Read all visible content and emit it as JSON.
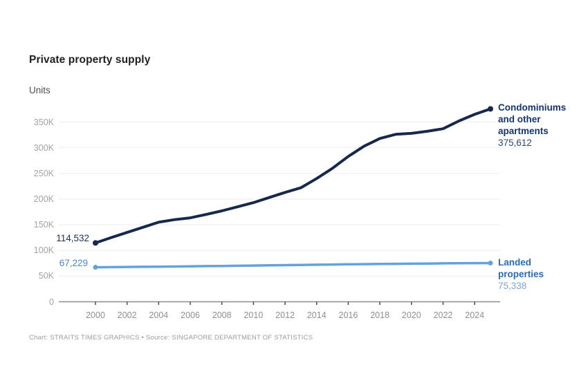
{
  "header": {
    "title": "Private property supply",
    "units_label": "Units"
  },
  "footer": {
    "credit": "Chart: STRAITS TIMES GRAPHICS • Source: SINGAPORE DEPARTMENT OF STATISTICS"
  },
  "colors": {
    "condo_line": "#16294c",
    "landed_line": "#63a2dc",
    "condo_label": "#15356b",
    "condo_value": "#2d4a77",
    "landed_label": "#2a6ab5",
    "landed_value": "#7ea6d8",
    "grid": "#ededed",
    "axis": "#8c8c8c",
    "tick": "#4a4a4a"
  },
  "annotations": {
    "condo_lines": [
      "Condominiums",
      "and other",
      "apartments"
    ],
    "condo_end_value": "375,612",
    "condo_start_value": "114,532",
    "landed_lines": [
      "Landed",
      "properties"
    ],
    "landed_end_value": "75,338",
    "landed_start_value": "67,229"
  },
  "chart_data": {
    "type": "line",
    "title": "Private property supply",
    "ylabel": "Units",
    "grid": "horizontal",
    "legend_position": "right-inline",
    "x": [
      2000,
      2001,
      2002,
      2003,
      2004,
      2005,
      2006,
      2007,
      2008,
      2009,
      2010,
      2011,
      2012,
      2013,
      2014,
      2015,
      2016,
      2017,
      2018,
      2019,
      2020,
      2021,
      2022,
      2023,
      2024,
      2025
    ],
    "series": [
      {
        "name": "Condominiums and other apartments",
        "color": "#16294c",
        "values": [
          114532,
          125000,
          135000,
          145000,
          155000,
          160000,
          163500,
          170000,
          177000,
          185000,
          193000,
          203000,
          213000,
          222000,
          240000,
          260000,
          283000,
          303000,
          318000,
          326000,
          328000,
          332000,
          337000,
          352000,
          365000,
          375612
        ]
      },
      {
        "name": "Landed properties",
        "color": "#63a2dc",
        "values": [
          67229,
          67500,
          67800,
          68100,
          68400,
          68700,
          69000,
          69400,
          69800,
          70200,
          70600,
          71000,
          71400,
          71800,
          72200,
          72600,
          73000,
          73300,
          73600,
          73900,
          74200,
          74500,
          74800,
          75000,
          75200,
          75338
        ]
      }
    ],
    "xticks": [
      2000,
      2002,
      2004,
      2006,
      2008,
      2010,
      2012,
      2014,
      2016,
      2018,
      2020,
      2022,
      2024
    ],
    "yticks": [
      {
        "v": 0,
        "label": "0"
      },
      {
        "v": 50000,
        "label": "50K"
      },
      {
        "v": 100000,
        "label": "100K"
      },
      {
        "v": 150000,
        "label": "150K"
      },
      {
        "v": 200000,
        "label": "200K"
      },
      {
        "v": 250000,
        "label": "250K"
      },
      {
        "v": 300000,
        "label": "300K"
      },
      {
        "v": 350000,
        "label": "350K"
      }
    ],
    "xlim": [
      2000,
      2025
    ],
    "ylim": [
      0,
      380000
    ]
  }
}
